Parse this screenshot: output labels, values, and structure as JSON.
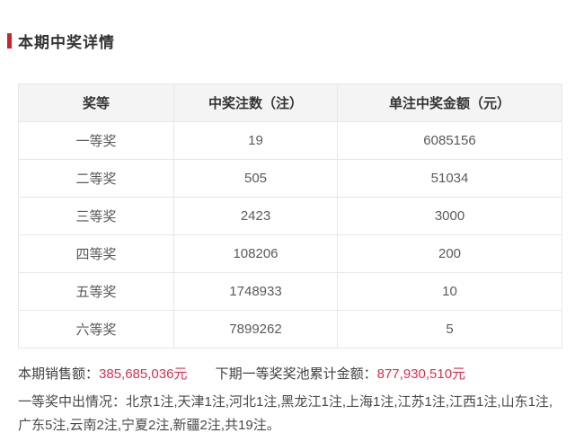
{
  "colors": {
    "accent_red": "#c9252d",
    "value_red": "#d9304e",
    "header_bg": "#f4f4f4",
    "border": "#e7e7e7"
  },
  "section": {
    "title": "本期中奖详情"
  },
  "table": {
    "headers": [
      "奖等",
      "中奖注数（注）",
      "单注中奖金额（元）"
    ],
    "rows": [
      [
        "一等奖",
        "19",
        "6085156"
      ],
      [
        "二等奖",
        "505",
        "51034"
      ],
      [
        "三等奖",
        "2423",
        "3000"
      ],
      [
        "四等奖",
        "108206",
        "200"
      ],
      [
        "五等奖",
        "1748933",
        "10"
      ],
      [
        "六等奖",
        "7899262",
        "5"
      ]
    ]
  },
  "summary": {
    "sales_label": "本期销售额：",
    "sales_value": "385,685,036元",
    "jackpot_label": "下期一等奖奖池累计金额：",
    "jackpot_value": "877,930,510元"
  },
  "first_prize_detail": "一等奖中出情况：北京1注,天津1注,河北1注,黑龙江1注,上海1注,江苏1注,江西1注,山东1注,广东5注,云南2注,宁夏2注,新疆2注,共19注。"
}
